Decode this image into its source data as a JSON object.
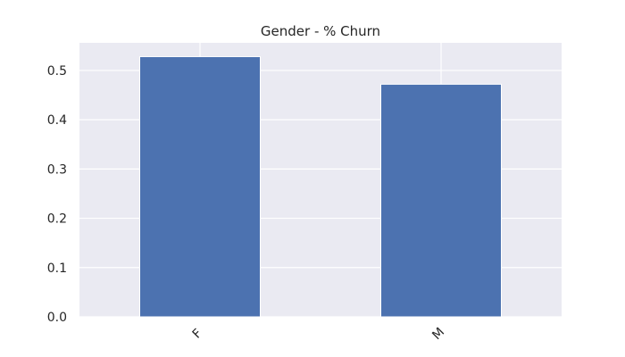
{
  "chart_data": {
    "type": "bar",
    "title": "Gender - % Churn",
    "xlabel": "",
    "ylabel": "",
    "categories": [
      "F",
      "M"
    ],
    "values": [
      0.528,
      0.472
    ],
    "ylim": [
      0,
      0.556
    ],
    "yticks": [
      0.0,
      0.1,
      0.2,
      0.3,
      0.4,
      0.5
    ],
    "ytick_labels": [
      "0.0",
      "0.1",
      "0.2",
      "0.3",
      "0.4",
      "0.5"
    ],
    "grid": true,
    "colors": {
      "bar": "#4c72b0",
      "plot_background": "#eaeaf2",
      "grid": "#ffffff"
    }
  }
}
